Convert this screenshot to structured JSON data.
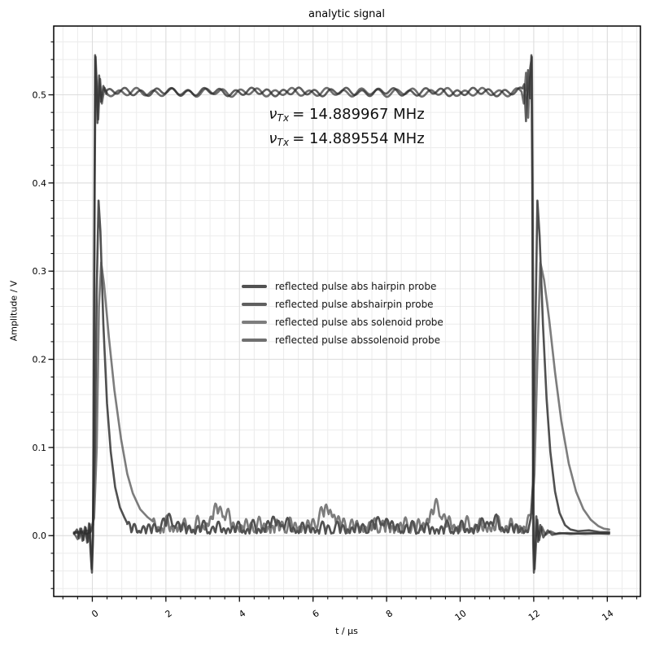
{
  "figure": {
    "title": "analytic signal"
  },
  "annotation": {
    "lines": [
      {
        "nu": "ν",
        "sub": "Tx",
        "rest": "= 14.889967 MHz"
      },
      {
        "nu": "ν",
        "sub": "Tx",
        "rest": "= 14.889554 MHz"
      }
    ]
  },
  "legend": {
    "entries": [
      {
        "label": "reflected pulse abs hairpin probe",
        "color": "#515151"
      },
      {
        "label": "reflected pulse abshairpin probe",
        "color": "#5f5f5f"
      },
      {
        "label": "reflected pulse abs solenoid probe",
        "color": "#7d7d7d"
      },
      {
        "label": "reflected pulse abssolenoid probe",
        "color": "#6f6f6f"
      }
    ]
  },
  "chart_data": {
    "type": "line",
    "title": "analytic signal",
    "xlabel": "t / µs",
    "ylabel": "Amplitude / V",
    "xlim": [
      -1.05,
      14.9
    ],
    "ylim": [
      -0.069,
      0.578
    ],
    "xticks": [
      0,
      2,
      4,
      6,
      8,
      10,
      12,
      14
    ],
    "xtick_labels": [
      "0",
      "2",
      "4",
      "6",
      "8",
      "10",
      "12",
      "14"
    ],
    "yticks": [
      0.0,
      0.1,
      0.2,
      0.3,
      0.4,
      0.5
    ],
    "ytick_labels": [
      "0.0",
      "0.1",
      "0.2",
      "0.3",
      "0.4",
      "0.5"
    ],
    "x_minor_step": 0.4,
    "y_minor_step": 0.02,
    "grid": {
      "major_color": "#dcdcdc",
      "minor_color": "#ececec"
    },
    "frame_color": "#000000",
    "pulse_summary": {
      "plateau_V": 0.503,
      "overshoot_V": 0.545,
      "undershoot_V": -0.042,
      "t_on_us": 0.05,
      "t_off_us": 12.0,
      "reflected_peaks_V": [
        0.38,
        0.31
      ]
    },
    "draw_order": [
      0,
      2,
      3,
      1
    ],
    "series": [
      {
        "name": "reflected pulse abs hairpin probe",
        "color": "#171717",
        "opacity": 0.75,
        "width": 2.6,
        "segments": [
          {
            "type": "pts",
            "pts": [
              [
                -0.5,
                0.003
              ],
              [
                -0.3,
                0.004
              ],
              [
                -0.15,
                0.002
              ],
              [
                -0.05,
                0.004
              ],
              [
                0.02,
                0.012
              ],
              [
                0.07,
                0.09
              ],
              [
                0.12,
                0.28
              ],
              [
                0.17,
                0.38
              ],
              [
                0.22,
                0.345
              ],
              [
                0.3,
                0.24
              ],
              [
                0.4,
                0.15
              ],
              [
                0.5,
                0.095
              ],
              [
                0.62,
                0.055
              ],
              [
                0.75,
                0.032
              ],
              [
                0.88,
                0.02
              ],
              [
                0.95,
                0.014
              ]
            ]
          },
          {
            "type": "noise",
            "t0": 0.95,
            "t1": 11.88,
            "base": 0.002,
            "comps": [
              [
                0.0085,
                0.27,
                0.4
              ],
              [
                0.0052,
                0.63,
                2.1
              ],
              [
                0.0028,
                1.45,
                1.0
              ]
            ],
            "bump": [
              0.009,
              2.9,
              3.31,
              6
            ]
          },
          {
            "type": "pts",
            "pts": [
              [
                11.92,
                0.02
              ],
              [
                11.98,
                0.06
              ],
              [
                12.04,
                0.22
              ],
              [
                12.1,
                0.38
              ],
              [
                12.16,
                0.34
              ],
              [
                12.25,
                0.24
              ],
              [
                12.35,
                0.155
              ],
              [
                12.45,
                0.095
              ],
              [
                12.58,
                0.05
              ],
              [
                12.7,
                0.026
              ],
              [
                12.85,
                0.012
              ],
              [
                13.0,
                0.007
              ],
              [
                13.2,
                0.005
              ],
              [
                13.5,
                0.006
              ],
              [
                13.8,
                0.004
              ],
              [
                14.05,
                0.004
              ]
            ]
          }
        ]
      },
      {
        "name": "reflected pulse abshairpin probe",
        "color": "#2a2a2a",
        "opacity": 0.75,
        "width": 2.6,
        "segments": [
          {
            "type": "pts",
            "pts": [
              [
                -0.5,
                0.002
              ],
              [
                -0.42,
                0.007
              ],
              [
                -0.36,
                -0.003
              ],
              [
                -0.3,
                0.008
              ],
              [
                -0.24,
                -0.005
              ],
              [
                -0.18,
                0.009
              ],
              [
                -0.12,
                -0.007
              ],
              [
                -0.07,
                0.013
              ],
              [
                -0.035,
                -0.022
              ],
              [
                -0.01,
                -0.042
              ],
              [
                0.02,
                0.0
              ],
              [
                0.05,
                0.3
              ],
              [
                0.075,
                0.545
              ],
              [
                0.105,
                0.52
              ],
              [
                0.14,
                0.468
              ],
              [
                0.185,
                0.522
              ],
              [
                0.235,
                0.492
              ],
              [
                0.3,
                0.51
              ],
              [
                0.38,
                0.501
              ]
            ]
          },
          {
            "type": "wave",
            "t0": 0.38,
            "t1": 11.7,
            "base": 0.5032,
            "comps": [
              [
                0.0034,
                0.43,
                1.2
              ],
              [
                0.0016,
                1.21,
                3.9
              ]
            ]
          },
          {
            "type": "pts",
            "pts": [
              [
                11.74,
                0.512
              ],
              [
                11.79,
                0.47
              ],
              [
                11.845,
                0.528
              ],
              [
                11.9,
                0.496
              ],
              [
                11.935,
                0.545
              ],
              [
                11.96,
                0.4
              ],
              [
                11.985,
                -0.01
              ],
              [
                12.005,
                -0.042
              ],
              [
                12.035,
                -0.015
              ],
              [
                12.07,
                0.022
              ],
              [
                12.12,
                -0.007
              ],
              [
                12.18,
                0.012
              ],
              [
                12.26,
                -0.002
              ],
              [
                12.38,
                0.006
              ],
              [
                12.5,
                0.001
              ],
              [
                12.7,
                0.003
              ],
              [
                13.0,
                0.002
              ],
              [
                13.5,
                0.003
              ],
              [
                14.05,
                0.002
              ]
            ]
          }
        ]
      },
      {
        "name": "reflected pulse abs solenoid probe",
        "color": "#525252",
        "opacity": 0.75,
        "width": 2.6,
        "segments": [
          {
            "type": "pts",
            "pts": [
              [
                -0.5,
                0.004
              ],
              [
                -0.25,
                0.005
              ],
              [
                -0.05,
                0.006
              ],
              [
                0.05,
                0.02
              ],
              [
                0.12,
                0.1
              ],
              [
                0.18,
                0.26
              ],
              [
                0.24,
                0.31
              ],
              [
                0.32,
                0.285
              ],
              [
                0.45,
                0.225
              ],
              [
                0.6,
                0.165
              ],
              [
                0.78,
                0.11
              ],
              [
                0.95,
                0.07
              ],
              [
                1.1,
                0.048
              ],
              [
                1.3,
                0.03
              ],
              [
                1.5,
                0.021
              ],
              [
                1.65,
                0.016
              ]
            ]
          },
          {
            "type": "noise",
            "t0": 1.65,
            "t1": 11.9,
            "base": 0.003,
            "comps": [
              [
                0.0105,
                0.24,
                2.0
              ],
              [
                0.006,
                0.55,
                0.8
              ],
              [
                0.004,
                1.6,
                2.6
              ]
            ],
            "bump": [
              0.02,
              2.95,
              0.51,
              6
            ]
          },
          {
            "type": "pts",
            "pts": [
              [
                11.95,
                0.025
              ],
              [
                12.02,
                0.07
              ],
              [
                12.1,
                0.2
              ],
              [
                12.18,
                0.31
              ],
              [
                12.28,
                0.29
              ],
              [
                12.42,
                0.245
              ],
              [
                12.58,
                0.185
              ],
              [
                12.75,
                0.13
              ],
              [
                12.95,
                0.082
              ],
              [
                13.15,
                0.05
              ],
              [
                13.35,
                0.03
              ],
              [
                13.55,
                0.018
              ],
              [
                13.75,
                0.011
              ],
              [
                13.9,
                0.008
              ],
              [
                14.05,
                0.007
              ]
            ]
          }
        ]
      },
      {
        "name": "reflected pulse abssolenoid probe",
        "color": "#3f3f3f",
        "opacity": 0.75,
        "width": 2.6,
        "segments": [
          {
            "type": "pts",
            "pts": [
              [
                -0.5,
                0.003
              ],
              [
                -0.4,
                -0.004
              ],
              [
                -0.33,
                0.008
              ],
              [
                -0.27,
                -0.006
              ],
              [
                -0.2,
                0.01
              ],
              [
                -0.14,
                -0.008
              ],
              [
                -0.09,
                0.014
              ],
              [
                -0.05,
                -0.018
              ],
              [
                -0.02,
                -0.038
              ],
              [
                0.01,
                -0.01
              ],
              [
                0.04,
                0.1
              ],
              [
                0.065,
                0.4
              ],
              [
                0.09,
                0.543
              ],
              [
                0.12,
                0.51
              ],
              [
                0.16,
                0.472
              ],
              [
                0.21,
                0.518
              ],
              [
                0.26,
                0.49
              ],
              [
                0.33,
                0.508
              ],
              [
                0.42,
                0.5
              ]
            ]
          },
          {
            "type": "wave",
            "t0": 0.42,
            "t1": 11.68,
            "base": 0.5028,
            "comps": [
              [
                0.0036,
                0.47,
                4.4
              ],
              [
                0.0015,
                1.05,
                0.8
              ]
            ]
          },
          {
            "type": "pts",
            "pts": [
              [
                11.73,
                0.49
              ],
              [
                11.79,
                0.525
              ],
              [
                11.85,
                0.474
              ],
              [
                11.9,
                0.53
              ],
              [
                11.95,
                0.543
              ],
              [
                11.975,
                0.35
              ],
              [
                12.0,
                -0.005
              ],
              [
                12.025,
                -0.038
              ],
              [
                12.06,
                -0.012
              ],
              [
                12.1,
                0.018
              ],
              [
                12.15,
                -0.005
              ],
              [
                12.22,
                0.01
              ],
              [
                12.32,
                0.001
              ],
              [
                12.45,
                0.005
              ],
              [
                12.6,
                0.002
              ],
              [
                12.9,
                0.003
              ],
              [
                13.4,
                0.002
              ],
              [
                14.05,
                0.003
              ]
            ]
          }
        ]
      }
    ]
  }
}
